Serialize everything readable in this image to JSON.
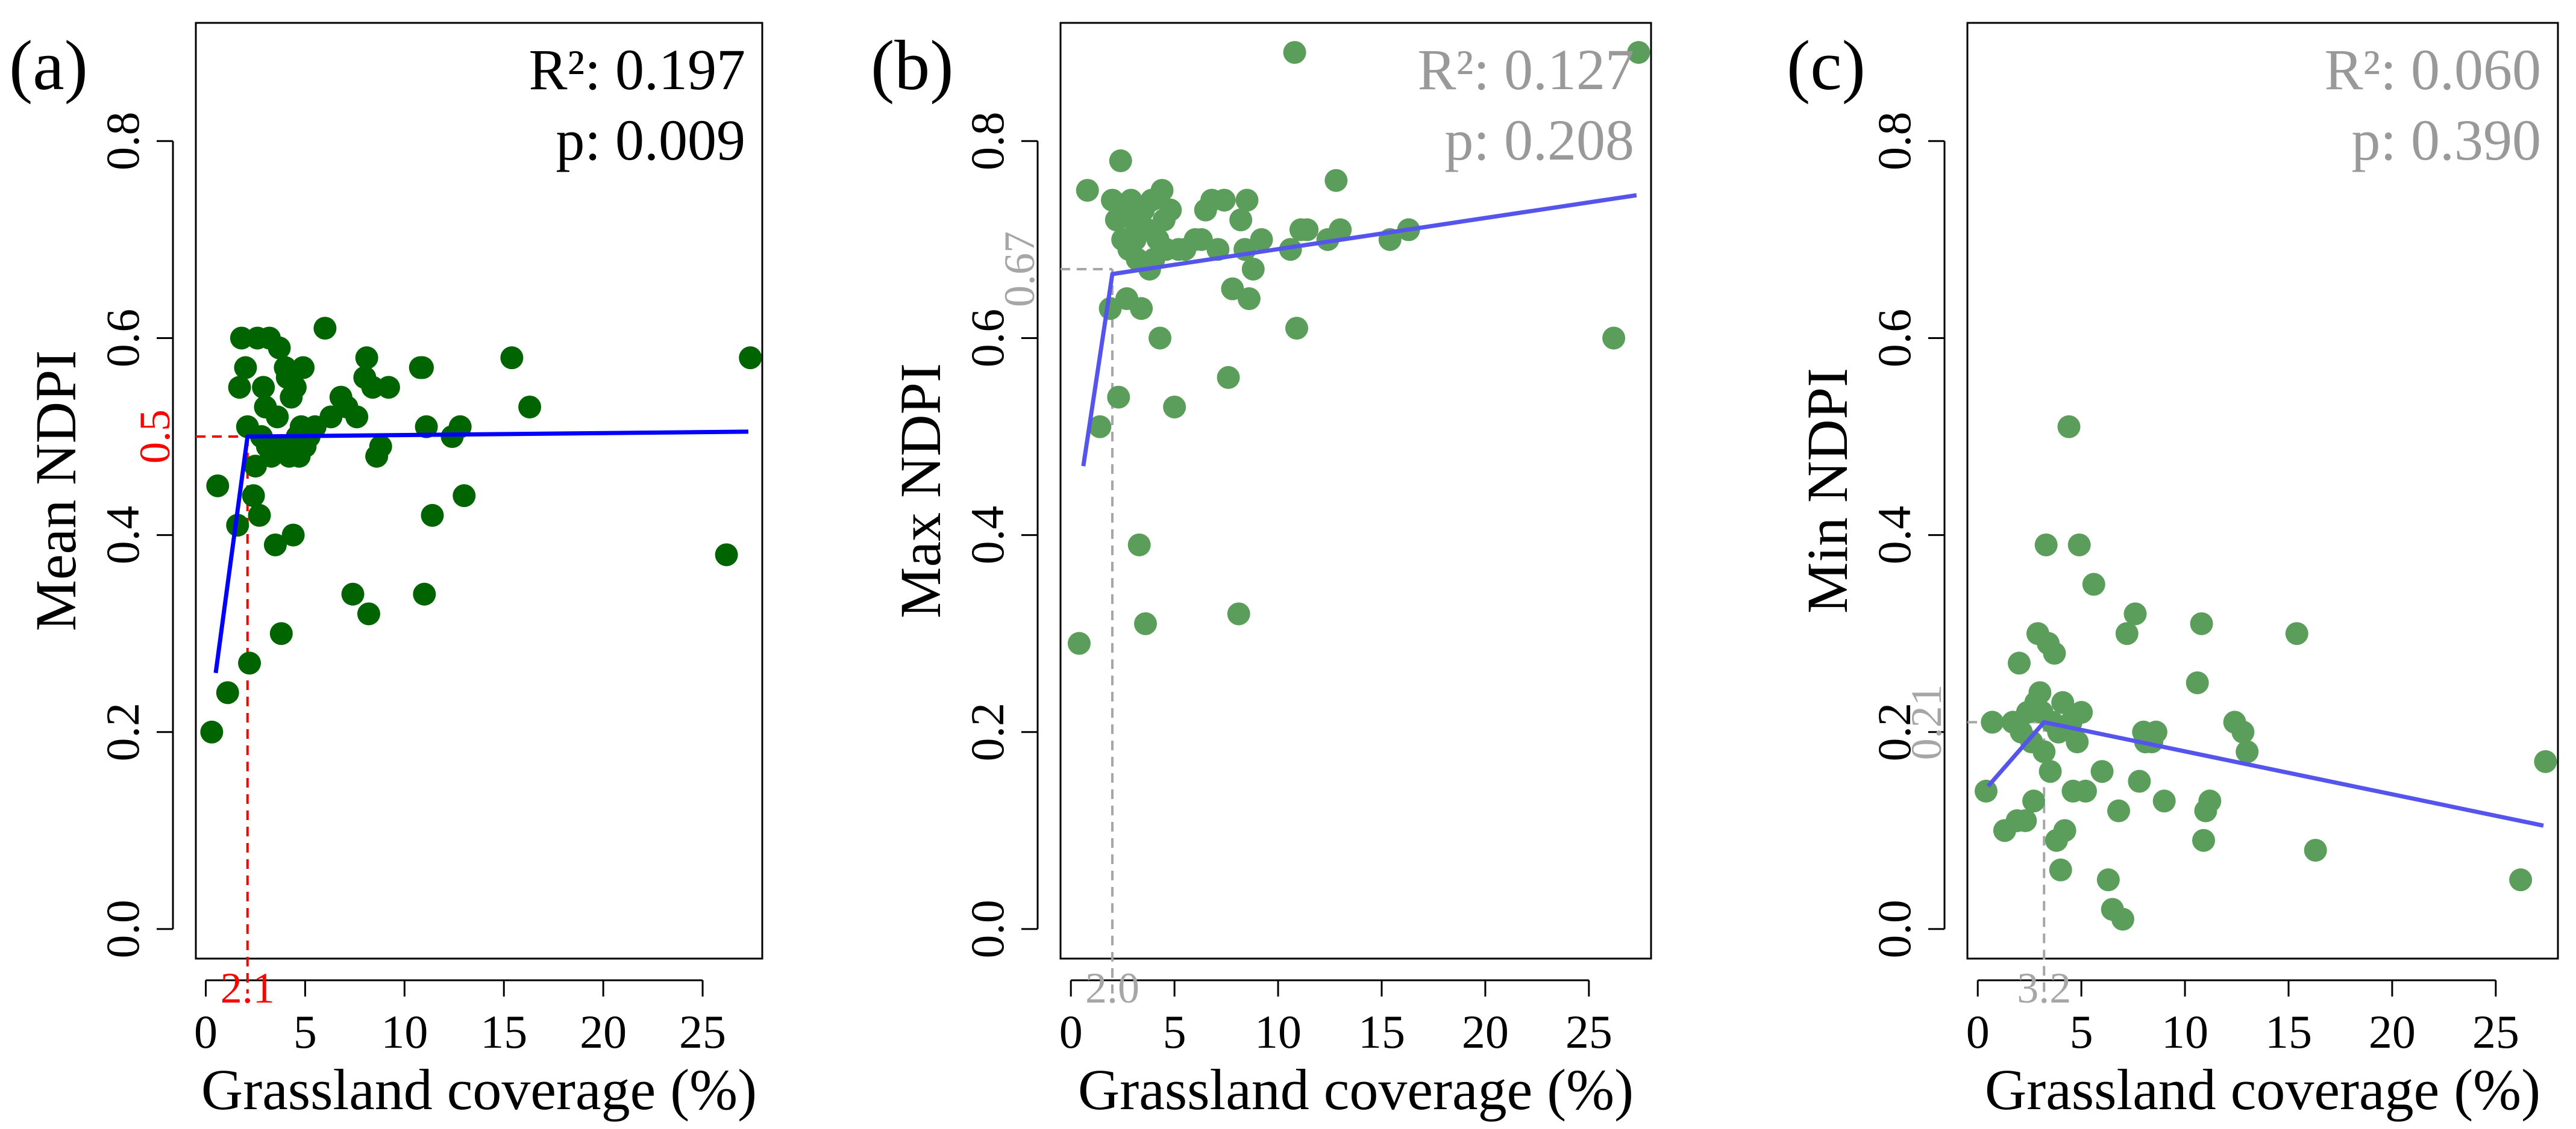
{
  "chart_data": [
    {
      "panel_label": "(a)",
      "type": "scatter",
      "xlabel": "Grassland coverage (%)",
      "ylabel": "Mean NDPI",
      "xlim": [
        -0.5,
        28
      ],
      "ylim": [
        -0.03,
        0.92
      ],
      "xticks": [
        0,
        5,
        10,
        15,
        20,
        25
      ],
      "yticks": [
        0.0,
        0.2,
        0.4,
        0.6,
        0.8
      ],
      "ytick_labels": [
        "0.0",
        "0.2",
        "0.4",
        "0.6",
        "0.8"
      ],
      "r2_text": "R²: 0.197",
      "p_text": "p: 0.009",
      "stats_color": "#000000",
      "point_color": "#006400",
      "line_color": "#0000ff",
      "guide_color": "#ff0000",
      "breakpoint": {
        "x": 2.1,
        "y": 0.5,
        "x_label": "2.1",
        "y_label": "0.5"
      },
      "fit_line": [
        [
          0.5,
          0.26
        ],
        [
          2.1,
          0.5
        ],
        [
          27.3,
          0.505
        ]
      ],
      "points": [
        [
          0.3,
          0.2
        ],
        [
          0.6,
          0.45
        ],
        [
          1.1,
          0.24
        ],
        [
          1.6,
          0.41
        ],
        [
          1.7,
          0.55
        ],
        [
          1.8,
          0.6
        ],
        [
          2.0,
          0.57
        ],
        [
          2.1,
          0.51
        ],
        [
          2.2,
          0.27
        ],
        [
          2.4,
          0.44
        ],
        [
          2.5,
          0.47
        ],
        [
          2.6,
          0.6
        ],
        [
          2.7,
          0.42
        ],
        [
          2.8,
          0.5
        ],
        [
          2.9,
          0.55
        ],
        [
          3.0,
          0.53
        ],
        [
          3.1,
          0.49
        ],
        [
          3.2,
          0.6
        ],
        [
          3.3,
          0.48
        ],
        [
          3.5,
          0.39
        ],
        [
          3.6,
          0.52
        ],
        [
          3.7,
          0.59
        ],
        [
          3.8,
          0.3
        ],
        [
          3.9,
          0.49
        ],
        [
          4.0,
          0.57
        ],
        [
          4.1,
          0.56
        ],
        [
          4.2,
          0.48
        ],
        [
          4.3,
          0.54
        ],
        [
          4.4,
          0.4
        ],
        [
          4.5,
          0.55
        ],
        [
          4.6,
          0.5
        ],
        [
          4.7,
          0.48
        ],
        [
          4.8,
          0.51
        ],
        [
          4.9,
          0.57
        ],
        [
          5.0,
          0.49
        ],
        [
          5.2,
          0.5
        ],
        [
          5.5,
          0.51
        ],
        [
          6.0,
          0.61
        ],
        [
          6.3,
          0.52
        ],
        [
          6.8,
          0.54
        ],
        [
          7.1,
          0.53
        ],
        [
          7.4,
          0.34
        ],
        [
          7.6,
          0.52
        ],
        [
          8.0,
          0.56
        ],
        [
          8.1,
          0.58
        ],
        [
          8.2,
          0.32
        ],
        [
          8.4,
          0.55
        ],
        [
          8.6,
          0.48
        ],
        [
          8.8,
          0.49
        ],
        [
          9.2,
          0.55
        ],
        [
          10.8,
          0.57
        ],
        [
          10.9,
          0.57
        ],
        [
          11.0,
          0.34
        ],
        [
          11.1,
          0.51
        ],
        [
          11.4,
          0.42
        ],
        [
          12.4,
          0.5
        ],
        [
          12.8,
          0.51
        ],
        [
          13.0,
          0.44
        ],
        [
          15.4,
          0.58
        ],
        [
          16.3,
          0.53
        ],
        [
          26.2,
          0.38
        ],
        [
          27.4,
          0.58
        ]
      ]
    },
    {
      "panel_label": "(b)",
      "type": "scatter",
      "xlabel": "Grassland coverage (%)",
      "ylabel": "Max NDPI",
      "xlim": [
        -0.5,
        28
      ],
      "ylim": [
        -0.03,
        0.92
      ],
      "xticks": [
        0,
        5,
        10,
        15,
        20,
        25
      ],
      "yticks": [
        0.0,
        0.2,
        0.4,
        0.6,
        0.8
      ],
      "ytick_labels": [
        "0.0",
        "0.2",
        "0.4",
        "0.6",
        "0.8"
      ],
      "r2_text": "R²: 0.127",
      "p_text": "p: 0.208",
      "stats_color": "#999999",
      "point_color": "#5b9e5b",
      "line_color": "#5555ee",
      "guide_color": "#a6a6a6",
      "breakpoint": {
        "x": 2.0,
        "y": 0.67,
        "x_label": "2.0",
        "y_label": "0.67"
      },
      "fit_line": [
        [
          0.6,
          0.47
        ],
        [
          2.0,
          0.665
        ],
        [
          27.3,
          0.745
        ]
      ],
      "points": [
        [
          0.4,
          0.29
        ],
        [
          0.8,
          0.75
        ],
        [
          1.4,
          0.51
        ],
        [
          1.9,
          0.63
        ],
        [
          2.0,
          0.74
        ],
        [
          2.2,
          0.72
        ],
        [
          2.3,
          0.54
        ],
        [
          2.4,
          0.78
        ],
        [
          2.5,
          0.7
        ],
        [
          2.6,
          0.73
        ],
        [
          2.7,
          0.64
        ],
        [
          2.8,
          0.69
        ],
        [
          2.9,
          0.74
        ],
        [
          3.0,
          0.72
        ],
        [
          3.1,
          0.7
        ],
        [
          3.2,
          0.68
        ],
        [
          3.3,
          0.39
        ],
        [
          3.4,
          0.63
        ],
        [
          3.5,
          0.73
        ],
        [
          3.6,
          0.31
        ],
        [
          3.7,
          0.71
        ],
        [
          3.8,
          0.67
        ],
        [
          3.9,
          0.74
        ],
        [
          4.0,
          0.68
        ],
        [
          4.2,
          0.7
        ],
        [
          4.3,
          0.6
        ],
        [
          4.4,
          0.75
        ],
        [
          4.5,
          0.72
        ],
        [
          4.6,
          0.69
        ],
        [
          4.8,
          0.73
        ],
        [
          5.0,
          0.53
        ],
        [
          5.2,
          0.69
        ],
        [
          5.5,
          0.69
        ],
        [
          6.0,
          0.7
        ],
        [
          6.3,
          0.7
        ],
        [
          6.5,
          0.73
        ],
        [
          6.8,
          0.74
        ],
        [
          7.1,
          0.69
        ],
        [
          7.4,
          0.74
        ],
        [
          7.6,
          0.56
        ],
        [
          7.8,
          0.65
        ],
        [
          8.1,
          0.32
        ],
        [
          8.2,
          0.72
        ],
        [
          8.4,
          0.69
        ],
        [
          8.5,
          0.74
        ],
        [
          8.6,
          0.64
        ],
        [
          8.8,
          0.67
        ],
        [
          9.2,
          0.7
        ],
        [
          10.6,
          0.69
        ],
        [
          10.8,
          0.89
        ],
        [
          10.9,
          0.61
        ],
        [
          11.1,
          0.71
        ],
        [
          11.4,
          0.71
        ],
        [
          12.4,
          0.7
        ],
        [
          12.8,
          0.76
        ],
        [
          13.0,
          0.71
        ],
        [
          15.4,
          0.7
        ],
        [
          16.3,
          0.71
        ],
        [
          26.2,
          0.6
        ],
        [
          27.4,
          0.89
        ]
      ]
    },
    {
      "panel_label": "(c)",
      "type": "scatter",
      "xlabel": "Grassland coverage (%)",
      "ylabel": "Min NDPI",
      "xlim": [
        -0.5,
        28
      ],
      "ylim": [
        -0.03,
        0.92
      ],
      "xticks": [
        0,
        5,
        10,
        15,
        20,
        25
      ],
      "yticks": [
        0.0,
        0.2,
        0.4,
        0.6,
        0.8
      ],
      "ytick_labels": [
        "0.0",
        "0.2",
        "0.4",
        "0.6",
        "0.8"
      ],
      "r2_text": "R²: 0.060",
      "p_text": "p: 0.390",
      "stats_color": "#999999",
      "point_color": "#5b9e5b",
      "line_color": "#5555ee",
      "guide_color": "#a6a6a6",
      "breakpoint": {
        "x": 3.2,
        "y": 0.21,
        "x_label": "3.2",
        "y_label": "0.21"
      },
      "fit_line": [
        [
          0.5,
          0.145
        ],
        [
          3.2,
          0.21
        ],
        [
          27.3,
          0.105
        ]
      ],
      "points": [
        [
          0.4,
          0.14
        ],
        [
          0.7,
          0.21
        ],
        [
          1.3,
          0.1
        ],
        [
          1.7,
          0.21
        ],
        [
          1.9,
          0.11
        ],
        [
          2.0,
          0.27
        ],
        [
          2.1,
          0.2
        ],
        [
          2.3,
          0.11
        ],
        [
          2.4,
          0.22
        ],
        [
          2.6,
          0.19
        ],
        [
          2.7,
          0.13
        ],
        [
          2.8,
          0.23
        ],
        [
          2.9,
          0.3
        ],
        [
          3.0,
          0.24
        ],
        [
          3.1,
          0.22
        ],
        [
          3.2,
          0.18
        ],
        [
          3.3,
          0.39
        ],
        [
          3.4,
          0.29
        ],
        [
          3.5,
          0.16
        ],
        [
          3.6,
          0.21
        ],
        [
          3.7,
          0.28
        ],
        [
          3.8,
          0.09
        ],
        [
          3.9,
          0.2
        ],
        [
          4.0,
          0.06
        ],
        [
          4.1,
          0.23
        ],
        [
          4.2,
          0.1
        ],
        [
          4.4,
          0.51
        ],
        [
          4.5,
          0.21
        ],
        [
          4.6,
          0.14
        ],
        [
          4.8,
          0.19
        ],
        [
          4.9,
          0.39
        ],
        [
          5.0,
          0.22
        ],
        [
          5.2,
          0.14
        ],
        [
          5.6,
          0.35
        ],
        [
          6.0,
          0.16
        ],
        [
          6.3,
          0.05
        ],
        [
          6.5,
          0.02
        ],
        [
          6.8,
          0.12
        ],
        [
          7.0,
          0.01
        ],
        [
          7.2,
          0.3
        ],
        [
          7.6,
          0.32
        ],
        [
          7.8,
          0.15
        ],
        [
          8.0,
          0.2
        ],
        [
          8.1,
          0.19
        ],
        [
          8.4,
          0.19
        ],
        [
          8.6,
          0.2
        ],
        [
          9.0,
          0.13
        ],
        [
          10.6,
          0.25
        ],
        [
          10.8,
          0.31
        ],
        [
          10.9,
          0.09
        ],
        [
          11.0,
          0.12
        ],
        [
          11.2,
          0.13
        ],
        [
          12.4,
          0.21
        ],
        [
          12.8,
          0.2
        ],
        [
          13.0,
          0.18
        ],
        [
          15.4,
          0.3
        ],
        [
          16.3,
          0.08
        ],
        [
          26.2,
          0.05
        ],
        [
          27.4,
          0.17
        ]
      ]
    }
  ]
}
